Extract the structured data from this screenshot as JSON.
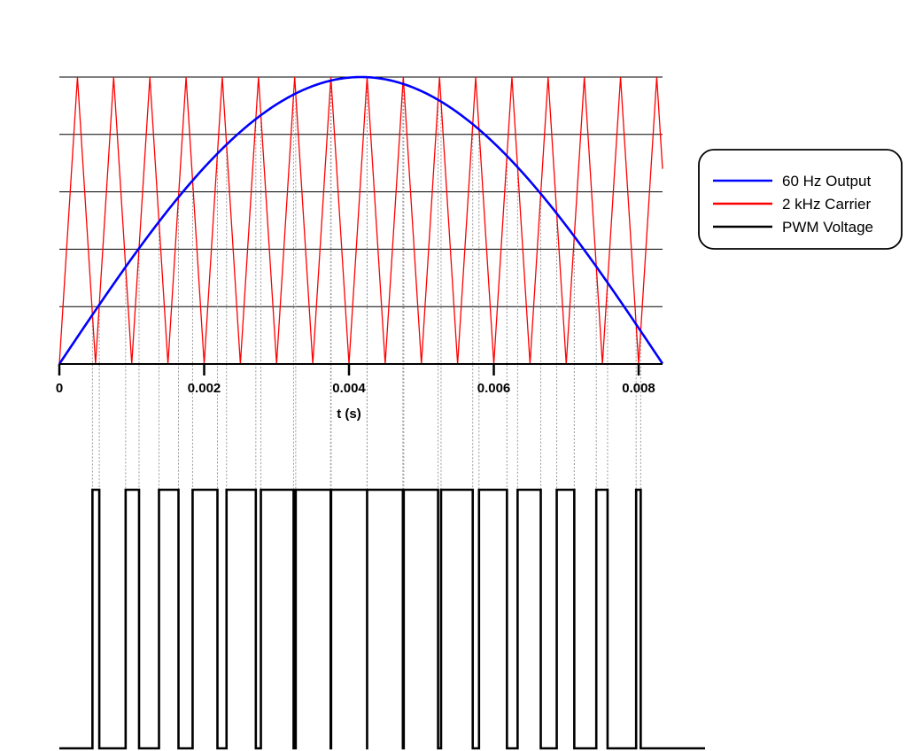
{
  "chart_data": {
    "type": "line",
    "title": "",
    "xlabel": "t (s)",
    "ylabel": "",
    "xlim": [
      0,
      0.00833
    ],
    "ylim": [
      0,
      1
    ],
    "xticks": [
      0,
      0.002,
      0.004,
      0.006,
      0.008
    ],
    "xtick_labels": [
      "0",
      "0.002",
      "0.004",
      "0.006",
      "0.008"
    ],
    "ygrid_values": [
      0,
      0.2,
      0.4,
      0.6,
      0.8,
      1.0
    ],
    "grid": "horizontal",
    "legend_position": "right",
    "series": [
      {
        "name": "60 Hz Output",
        "color": "#0000ff",
        "frequency_hz": 60,
        "amplitude": 1,
        "shape": "sine"
      },
      {
        "name": "2 kHz Carrier",
        "color": "#ff0000",
        "frequency_hz": 2000,
        "amplitude": 1,
        "shape": "triangle"
      },
      {
        "name": "PWM Voltage",
        "color": "#000000",
        "levels": [
          0,
          1
        ],
        "shape": "square"
      }
    ]
  }
}
